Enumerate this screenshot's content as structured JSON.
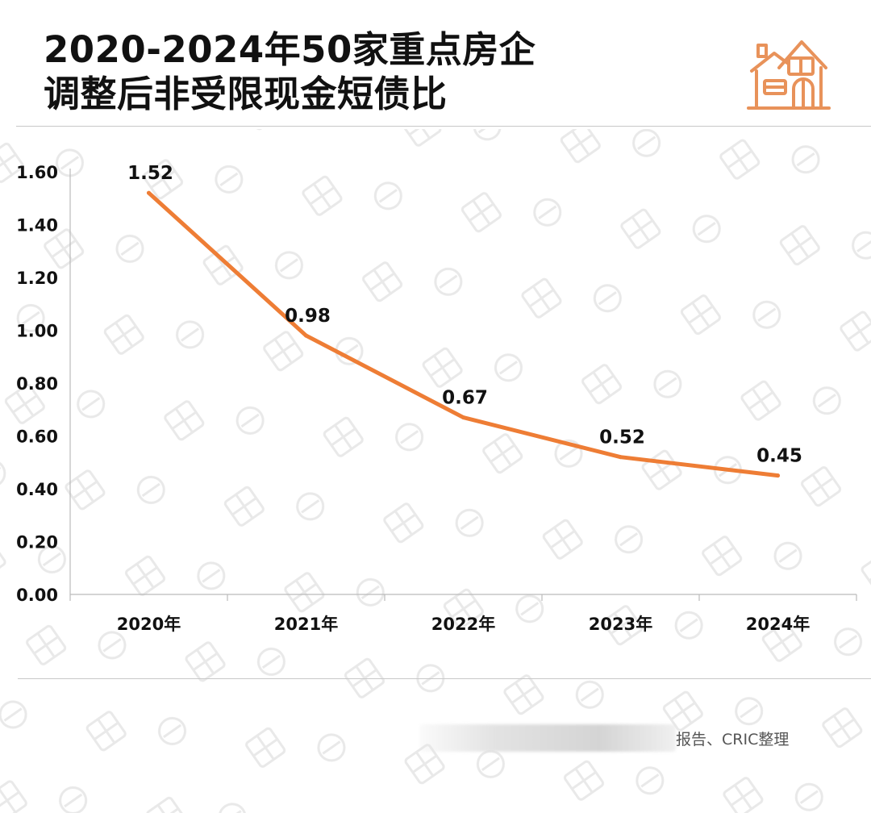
{
  "title": {
    "line1": "2020-2024年50家重点房企",
    "line2": "调整后非受限现金短债比"
  },
  "logo_icon": "house-icon",
  "source_text": "报告、CRIC整理",
  "colors": {
    "line": "#ee7d35",
    "logo": "#e8925a",
    "text": "#111111",
    "axis": "#bbbbbb"
  },
  "chart_data": {
    "type": "line",
    "categories": [
      "2020年",
      "2021年",
      "2022年",
      "2023年",
      "2024年"
    ],
    "values": [
      1.52,
      0.98,
      0.67,
      0.52,
      0.45
    ],
    "data_labels": [
      "1.52",
      "0.98",
      "0.67",
      "0.52",
      "0.45"
    ],
    "title": "2020-2024年50家重点房企调整后非受限现金短债比",
    "ylim": [
      0,
      1.6
    ],
    "yticks": [
      0,
      0.2,
      0.4,
      0.6,
      0.8,
      1.0,
      1.2,
      1.4,
      1.6
    ],
    "ytick_labels": [
      "0.00",
      "0.20",
      "0.40",
      "0.60",
      "0.80",
      "1.00",
      "1.20",
      "1.40",
      "1.60"
    ],
    "grid": false,
    "legend": "none"
  }
}
